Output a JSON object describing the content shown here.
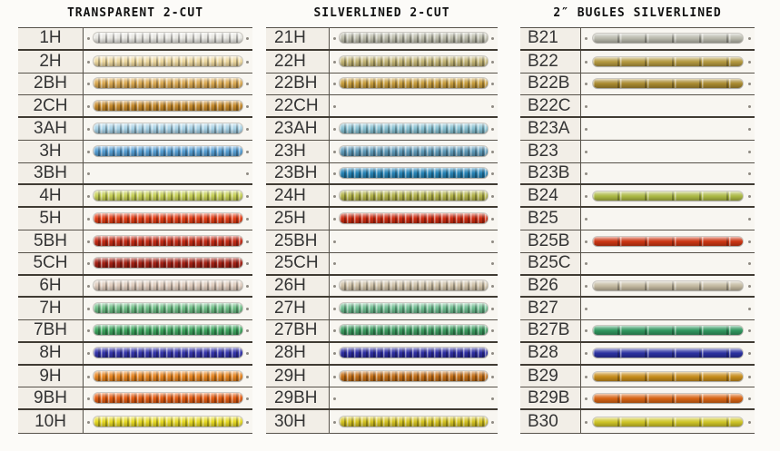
{
  "palette": {
    "paper": "#fcfbf8",
    "label_bg": "#f2eee7",
    "bead_bg": "#f8f6f1",
    "line": "#57524a",
    "line_strong": "#403b33",
    "label_text": "#343434",
    "title_text": "#111111",
    "thread_dot": "#8e8a82"
  },
  "panels": [
    {
      "title": "TRANSPARENT 2-CUT",
      "bead_style": "2cut",
      "rows": [
        {
          "code": "1H",
          "color": "#e6e5e0",
          "empty": false,
          "group_end": true
        },
        {
          "code": "2H",
          "color": "#ecd79d",
          "empty": false,
          "group_end": false
        },
        {
          "code": "2BH",
          "color": "#d9a851",
          "empty": false,
          "group_end": false
        },
        {
          "code": "2CH",
          "color": "#c4882a",
          "empty": false,
          "group_end": true
        },
        {
          "code": "3AH",
          "color": "#a5d0e4",
          "empty": false,
          "group_end": false
        },
        {
          "code": "3H",
          "color": "#559dd2",
          "empty": false,
          "group_end": false
        },
        {
          "code": "3BH",
          "color": null,
          "empty": true,
          "group_end": true
        },
        {
          "code": "4H",
          "color": "#c5ce55",
          "empty": false,
          "group_end": true
        },
        {
          "code": "5H",
          "color": "#e23d15",
          "empty": false,
          "group_end": false
        },
        {
          "code": "5BH",
          "color": "#c52b16",
          "empty": false,
          "group_end": false
        },
        {
          "code": "5CH",
          "color": "#a32115",
          "empty": false,
          "group_end": true
        },
        {
          "code": "6H",
          "color": "#ddcabb",
          "empty": false,
          "group_end": true
        },
        {
          "code": "7H",
          "color": "#6cbc84",
          "empty": false,
          "group_end": false
        },
        {
          "code": "7BH",
          "color": "#3da55e",
          "empty": false,
          "group_end": true
        },
        {
          "code": "8H",
          "color": "#3434aa",
          "empty": false,
          "group_end": true
        },
        {
          "code": "9H",
          "color": "#e58420",
          "empty": false,
          "group_end": false
        },
        {
          "code": "9BH",
          "color": "#e25c12",
          "empty": false,
          "group_end": true
        },
        {
          "code": "10H",
          "color": "#e6d922",
          "empty": false,
          "group_end": false
        }
      ]
    },
    {
      "title": "SILVERLINED 2-CUT",
      "bead_style": "2cut",
      "rows": [
        {
          "code": "21H",
          "color": "#bcbcab",
          "empty": false,
          "group_end": true
        },
        {
          "code": "22H",
          "color": "#c3b575",
          "empty": false,
          "group_end": false
        },
        {
          "code": "22BH",
          "color": "#c79d3c",
          "empty": false,
          "group_end": false
        },
        {
          "code": "22CH",
          "color": null,
          "empty": true,
          "group_end": true
        },
        {
          "code": "23AH",
          "color": "#85bfd0",
          "empty": false,
          "group_end": false
        },
        {
          "code": "23H",
          "color": "#5e9ab8",
          "empty": false,
          "group_end": false
        },
        {
          "code": "23BH",
          "color": "#2583b5",
          "empty": false,
          "group_end": true
        },
        {
          "code": "24H",
          "color": "#b2b249",
          "empty": false,
          "group_end": true
        },
        {
          "code": "25H",
          "color": "#cd2b10",
          "empty": false,
          "group_end": false
        },
        {
          "code": "25BH",
          "color": null,
          "empty": true,
          "group_end": false
        },
        {
          "code": "25CH",
          "color": null,
          "empty": true,
          "group_end": true
        },
        {
          "code": "26H",
          "color": "#cec0a6",
          "empty": false,
          "group_end": true
        },
        {
          "code": "27H",
          "color": "#6cbb8e",
          "empty": false,
          "group_end": false
        },
        {
          "code": "27BH",
          "color": "#3c9c60",
          "empty": false,
          "group_end": true
        },
        {
          "code": "28H",
          "color": "#2e2ea2",
          "empty": false,
          "group_end": true
        },
        {
          "code": "29H",
          "color": "#c36f18",
          "empty": false,
          "group_end": false
        },
        {
          "code": "29BH",
          "color": null,
          "empty": true,
          "group_end": true
        },
        {
          "code": "30H",
          "color": "#d4c322",
          "empty": false,
          "group_end": false
        }
      ]
    },
    {
      "title": "2″ BUGLES SILVERLINED",
      "bead_style": "bugle",
      "rows": [
        {
          "code": "B21",
          "color": "#b9b9ac",
          "empty": false,
          "group_end": true
        },
        {
          "code": "B22",
          "color": "#b3983f",
          "empty": false,
          "group_end": false
        },
        {
          "code": "B22B",
          "color": "#a8892f",
          "empty": false,
          "group_end": false
        },
        {
          "code": "B22C",
          "color": null,
          "empty": true,
          "group_end": true
        },
        {
          "code": "B23A",
          "color": null,
          "empty": true,
          "group_end": false
        },
        {
          "code": "B23",
          "color": null,
          "empty": true,
          "group_end": false
        },
        {
          "code": "B23B",
          "color": null,
          "empty": true,
          "group_end": true
        },
        {
          "code": "B24",
          "color": "#abb844",
          "empty": false,
          "group_end": true
        },
        {
          "code": "B25",
          "color": null,
          "empty": true,
          "group_end": false
        },
        {
          "code": "B25B",
          "color": "#cb3512",
          "empty": false,
          "group_end": false
        },
        {
          "code": "B25C",
          "color": null,
          "empty": true,
          "group_end": true
        },
        {
          "code": "B26",
          "color": "#c3b9a0",
          "empty": false,
          "group_end": true
        },
        {
          "code": "B27",
          "color": null,
          "empty": true,
          "group_end": false
        },
        {
          "code": "B27B",
          "color": "#31975f",
          "empty": false,
          "group_end": true
        },
        {
          "code": "B28",
          "color": "#2b31a0",
          "empty": false,
          "group_end": true
        },
        {
          "code": "B29",
          "color": "#c68c1c",
          "empty": false,
          "group_end": false
        },
        {
          "code": "B29B",
          "color": "#d66414",
          "empty": false,
          "group_end": true
        },
        {
          "code": "B30",
          "color": "#cec426",
          "empty": false,
          "group_end": false
        }
      ]
    }
  ]
}
